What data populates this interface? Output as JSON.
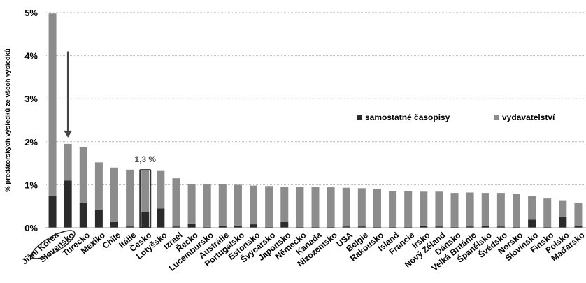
{
  "chart_data": {
    "type": "bar",
    "stacked": true,
    "ylabel": "% predátorských výsledků ze všech výsledků",
    "ylim": [
      0,
      5
    ],
    "ytick_labels": [
      "0%",
      "1%",
      "2%",
      "3%",
      "4%",
      "5%"
    ],
    "grid": true,
    "legend_position": "right",
    "categories": [
      "Jižní Korea",
      "Slovensko",
      "Turecko",
      "Mexiko",
      "Chile",
      "Itálie",
      "Česko",
      "Lotyšsko",
      "Izrael",
      "Řecko",
      "Lucembursko",
      "Austrálie",
      "Portugalsko",
      "Estonsko",
      "Švýcarsko",
      "Japonsko",
      "Německo",
      "Kanada",
      "Nizozemsko",
      "USA",
      "Belgie",
      "Rakousko",
      "Island",
      "Francie",
      "Irsko",
      "Nový Zéland",
      "Dánsko",
      "Velká Británie",
      "Španělsko",
      "Švédsko",
      "Norsko",
      "Slovinsko",
      "Finsko",
      "Polsko",
      "Maďarsko"
    ],
    "series": [
      {
        "name": "samostatné časopisy",
        "color": "#2b2b2b",
        "values": [
          0.75,
          1.1,
          0.57,
          0.42,
          0.15,
          0.03,
          0.37,
          0.45,
          0.03,
          0.1,
          0.02,
          0.05,
          0.05,
          0.08,
          0.02,
          0.14,
          0.02,
          0.02,
          0.02,
          0.03,
          0.03,
          0.02,
          0.02,
          0.02,
          0.05,
          0.03,
          0.02,
          0.03,
          0.05,
          0.03,
          0.02,
          0.19,
          0.02,
          0.25,
          0.05
        ]
      },
      {
        "name": "vydavatelství",
        "color": "#8c8c8c",
        "values": [
          4.23,
          0.85,
          1.3,
          1.1,
          1.25,
          1.32,
          0.96,
          0.87,
          1.12,
          0.92,
          1.0,
          0.96,
          0.95,
          0.9,
          0.95,
          0.81,
          0.93,
          0.93,
          0.92,
          0.9,
          0.89,
          0.89,
          0.83,
          0.83,
          0.79,
          0.81,
          0.79,
          0.79,
          0.76,
          0.78,
          0.76,
          0.55,
          0.66,
          0.39,
          0.52
        ]
      }
    ],
    "annotations": [
      {
        "type": "label",
        "text": "1,3 %",
        "category": "Česko"
      },
      {
        "type": "box",
        "category": "Česko"
      },
      {
        "type": "arrow",
        "category": "Slovensko"
      },
      {
        "type": "ellipse",
        "categories": [
          "Jižní Korea",
          "Slovensko"
        ]
      }
    ]
  }
}
